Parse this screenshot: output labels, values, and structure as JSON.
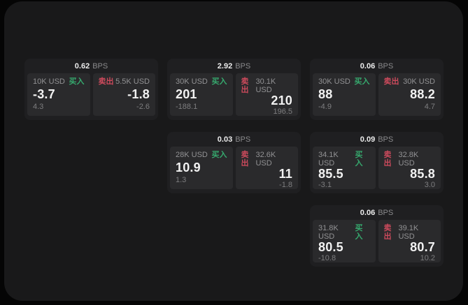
{
  "colors": {
    "green": "#36a96e",
    "red": "#cc4a5c"
  },
  "labels": {
    "buy": "买入",
    "sell": "卖出",
    "unit": "BPS"
  },
  "cards": [
    {
      "bps": "0.62",
      "buy": {
        "amount": "10K USD",
        "price": "-3.7",
        "delta": "4.3"
      },
      "sell": {
        "amount": "5.5K USD",
        "price": "-1.8",
        "delta": "-2.6"
      }
    },
    {
      "bps": "2.92",
      "buy": {
        "amount": "30K USD",
        "price": "201",
        "delta": "-188.1"
      },
      "sell": {
        "amount": "30.1K USD",
        "price": "210",
        "delta": "196.5"
      }
    },
    {
      "bps": "0.03",
      "buy": {
        "amount": "28K USD",
        "price": "10.9",
        "delta": "1.3"
      },
      "sell": {
        "amount": "32.6K USD",
        "price": "11",
        "delta": "-1.8"
      }
    },
    {
      "bps": "0.06",
      "buy": {
        "amount": "30K USD",
        "price": "88",
        "delta": "-4.9"
      },
      "sell": {
        "amount": "30K USD",
        "price": "88.2",
        "delta": "4.7"
      }
    },
    {
      "bps": "0.09",
      "buy": {
        "amount": "34.1K USD",
        "price": "85.5",
        "delta": "-3.1"
      },
      "sell": {
        "amount": "32.8K USD",
        "price": "85.8",
        "delta": "3.0"
      }
    },
    {
      "bps": "0.06",
      "buy": {
        "amount": "31.8K USD",
        "price": "80.5",
        "delta": "-10.8"
      },
      "sell": {
        "amount": "39.1K USD",
        "price": "80.7",
        "delta": "10.2"
      }
    }
  ]
}
